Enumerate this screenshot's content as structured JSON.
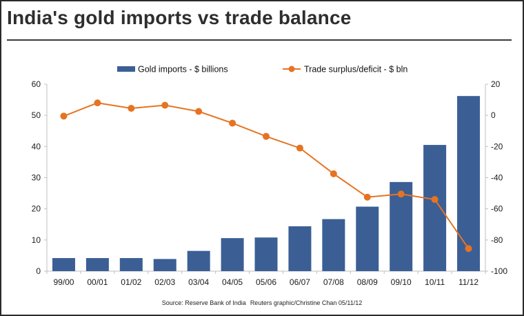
{
  "title": "India's gold imports vs trade balance",
  "source": "Source: Reserve Bank of India",
  "credit": "Reuters graphic/Christine Chan 05/11/12",
  "colors": {
    "bar": "#3b5f95",
    "line": "#e67322",
    "axis": "#bfbfbf",
    "title": "#2e2e2e"
  },
  "chart_data": {
    "type": "bar+line",
    "categories": [
      "99/00",
      "00/01",
      "01/02",
      "02/03",
      "03/04",
      "04/05",
      "05/06",
      "06/07",
      "07/08",
      "08/09",
      "09/10",
      "10/11",
      "11/12"
    ],
    "series": [
      {
        "name": "Gold imports - $ billions",
        "type": "bar",
        "axis": "left",
        "values": [
          4.2,
          4.2,
          4.2,
          3.9,
          6.5,
          10.6,
          10.8,
          14.4,
          16.7,
          20.7,
          28.6,
          40.5,
          56.2
        ]
      },
      {
        "name": "Trade surplus/deficit - $ bln",
        "type": "line",
        "axis": "right",
        "values": [
          -0.5,
          8,
          4.5,
          6.5,
          2.5,
          -5,
          -13.5,
          -21,
          -37.5,
          -52.5,
          -50.5,
          -54,
          -85.5
        ]
      }
    ],
    "y_left": {
      "min": 0,
      "max": 60,
      "ticks": [
        0,
        10,
        20,
        30,
        40,
        50,
        60
      ]
    },
    "y_right": {
      "min": -100,
      "max": 20,
      "ticks": [
        20,
        0,
        -20,
        -40,
        -60,
        -80,
        -100
      ]
    },
    "grid": false,
    "legend_position": "top-center"
  }
}
